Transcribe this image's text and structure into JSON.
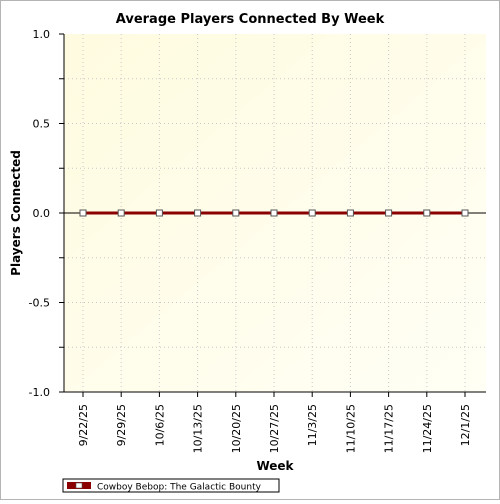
{
  "chart_data": {
    "type": "line",
    "title": "Average Players Connected By Week",
    "xlabel": "Week",
    "ylabel": "Players Connected",
    "categories": [
      "9/22/25",
      "9/29/25",
      "10/6/25",
      "10/13/25",
      "10/20/25",
      "10/27/25",
      "11/3/25",
      "11/10/25",
      "11/17/25",
      "11/24/25",
      "12/1/25"
    ],
    "series": [
      {
        "name": "Cowboy Bebop: The Galactic Bounty",
        "values": [
          0,
          0,
          0,
          0,
          0,
          0,
          0,
          0,
          0,
          0,
          0
        ],
        "color": "#8b0000"
      }
    ],
    "ylim": [
      -1.0,
      1.0
    ],
    "yticks": [
      "1.0",
      "0.5",
      "0.0",
      "-0.5",
      "-1.0"
    ],
    "grid": true,
    "legend": "bottom-left",
    "colors": {
      "plot_bg_start": "#fffbe0",
      "plot_bg_end": "#fffff5",
      "grid": "#c8c8c8",
      "line": "#8b0000",
      "marker_fill": "#ffffff"
    }
  }
}
